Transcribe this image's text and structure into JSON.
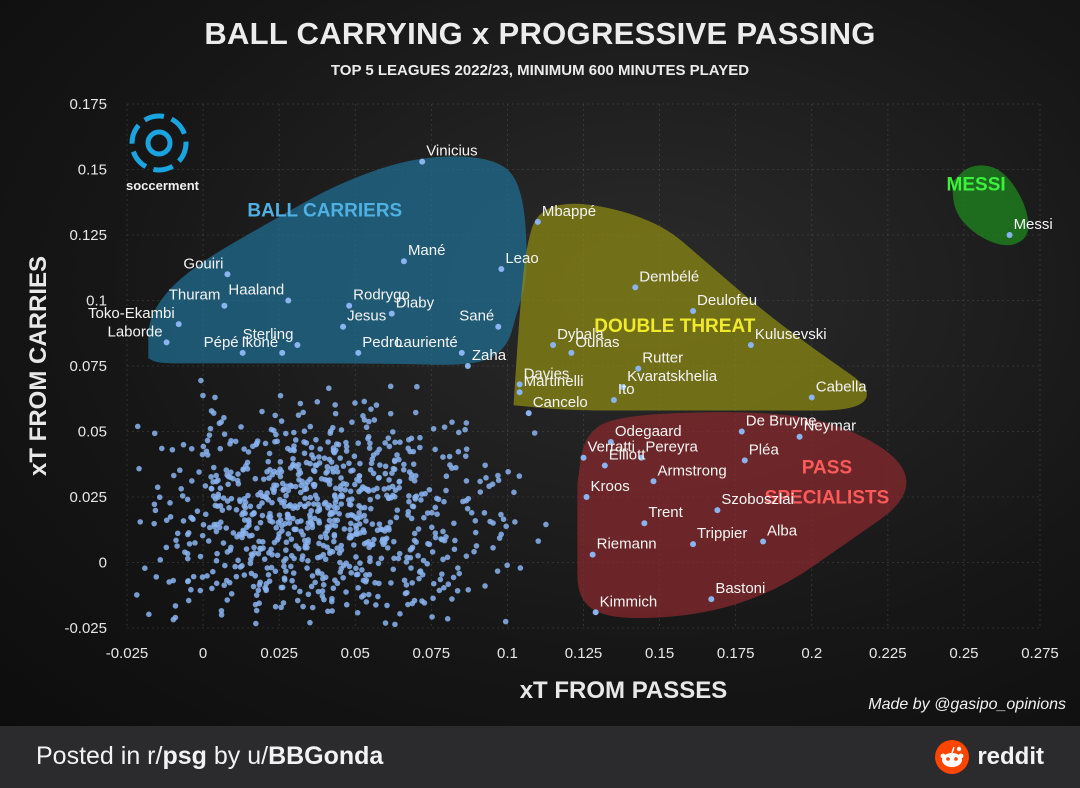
{
  "header": {
    "title": "BALL CARRYING x PROGRESSIVE PASSING",
    "subtitle": "TOP 5 LEAGUES 2022/23, MINIMUM 600 MINUTES PLAYED"
  },
  "logo": {
    "text": "soccerment",
    "icon": "soccerment-logo-icon"
  },
  "credit": "Made by @gasipo_opinions",
  "footer": {
    "prefix": "Posted in r/",
    "subreddit": "psg",
    "by": " by u/",
    "user": "BBGonda",
    "brand": "reddit",
    "brand_icon": "reddit-alien-icon",
    "brand_color": "#ff4500"
  },
  "chart_data": {
    "type": "scatter",
    "xlabel": "xT FROM PASSES",
    "ylabel": "xT FROM CARRIES",
    "xlim": [
      -0.025,
      0.275
    ],
    "ylim": [
      -0.025,
      0.175
    ],
    "xticks": [
      "-0.025",
      "0",
      "0.025",
      "0.05",
      "0.075",
      "0.1",
      "0.125",
      "0.15",
      "0.175",
      "0.2",
      "0.225",
      "0.25",
      "0.275"
    ],
    "yticks": [
      "-0.025",
      "0",
      "0.025",
      "0.05",
      "0.075",
      "0.1",
      "0.125",
      "0.15",
      "0.175"
    ],
    "grid": true,
    "point_color": "#8ab4f0",
    "groups": [
      {
        "label": "BALL CARRIERS",
        "color": "#1f6f93",
        "label_color": "#4fb1e3",
        "label_x": 0.04,
        "label_y": 0.132
      },
      {
        "label": "DOUBLE THREAT",
        "color": "#8f8a14",
        "label_color": "#f0ea2a",
        "label_x": 0.155,
        "label_y": 0.088
      },
      {
        "label": "PASS SPECIALISTS",
        "color": "#8b2a2e",
        "label_color": "#ff5a5a",
        "label_x": 0.205,
        "label_y": 0.034
      },
      {
        "label": "MESSI",
        "color": "#1e8a1e",
        "label_color": "#3ef03e",
        "label_x": 0.254,
        "label_y": 0.142
      }
    ],
    "players": [
      {
        "name": "Vinicius",
        "x": 0.072,
        "y": 0.153
      },
      {
        "name": "Mané",
        "x": 0.066,
        "y": 0.115
      },
      {
        "name": "Leao",
        "x": 0.098,
        "y": 0.112
      },
      {
        "name": "Gouiri",
        "x": 0.008,
        "y": 0.11
      },
      {
        "name": "Haaland",
        "x": 0.028,
        "y": 0.1
      },
      {
        "name": "Thuram",
        "x": 0.007,
        "y": 0.098
      },
      {
        "name": "Rodrygo",
        "x": 0.048,
        "y": 0.098
      },
      {
        "name": "Diaby",
        "x": 0.062,
        "y": 0.095
      },
      {
        "name": "Toko-Ekambi",
        "x": -0.008,
        "y": 0.091
      },
      {
        "name": "Jesus",
        "x": 0.046,
        "y": 0.09
      },
      {
        "name": "Sané",
        "x": 0.097,
        "y": 0.09
      },
      {
        "name": "Sterling",
        "x": 0.031,
        "y": 0.083
      },
      {
        "name": "Pedro",
        "x": 0.051,
        "y": 0.08
      },
      {
        "name": "Laurienté",
        "x": 0.085,
        "y": 0.08
      },
      {
        "name": "Laborde",
        "x": -0.012,
        "y": 0.084
      },
      {
        "name": "Pépé",
        "x": 0.013,
        "y": 0.08
      },
      {
        "name": "Ikoné",
        "x": 0.026,
        "y": 0.08
      },
      {
        "name": "Zaha",
        "x": 0.087,
        "y": 0.075
      },
      {
        "name": "Mbappé",
        "x": 0.11,
        "y": 0.13
      },
      {
        "name": "Dembélé",
        "x": 0.142,
        "y": 0.105
      },
      {
        "name": "Deulofeu",
        "x": 0.161,
        "y": 0.096
      },
      {
        "name": "Dybala",
        "x": 0.115,
        "y": 0.083
      },
      {
        "name": "Kulusevski",
        "x": 0.18,
        "y": 0.083
      },
      {
        "name": "Ounas",
        "x": 0.121,
        "y": 0.08
      },
      {
        "name": "Rutter",
        "x": 0.143,
        "y": 0.074
      },
      {
        "name": "Davies",
        "x": 0.104,
        "y": 0.068
      },
      {
        "name": "Kvaratskhelia",
        "x": 0.138,
        "y": 0.067
      },
      {
        "name": "Martinelli",
        "x": 0.104,
        "y": 0.065
      },
      {
        "name": "Ito",
        "x": 0.135,
        "y": 0.062
      },
      {
        "name": "Cabella",
        "x": 0.2,
        "y": 0.063
      },
      {
        "name": "Cancelo",
        "x": 0.107,
        "y": 0.057
      },
      {
        "name": "De Bruyne",
        "x": 0.177,
        "y": 0.05
      },
      {
        "name": "Odegaard",
        "x": 0.134,
        "y": 0.046
      },
      {
        "name": "Neymar",
        "x": 0.196,
        "y": 0.048
      },
      {
        "name": "Verratti",
        "x": 0.125,
        "y": 0.04
      },
      {
        "name": "Pereyra",
        "x": 0.144,
        "y": 0.04
      },
      {
        "name": "Pléa",
        "x": 0.178,
        "y": 0.039
      },
      {
        "name": "Elliott",
        "x": 0.132,
        "y": 0.037
      },
      {
        "name": "Armstrong",
        "x": 0.148,
        "y": 0.031
      },
      {
        "name": "Kroos",
        "x": 0.126,
        "y": 0.025
      },
      {
        "name": "Szoboszlai",
        "x": 0.169,
        "y": 0.02
      },
      {
        "name": "Trent",
        "x": 0.145,
        "y": 0.015
      },
      {
        "name": "Trippier",
        "x": 0.161,
        "y": 0.007
      },
      {
        "name": "Alba",
        "x": 0.184,
        "y": 0.008
      },
      {
        "name": "Riemann",
        "x": 0.128,
        "y": 0.003
      },
      {
        "name": "Bastoni",
        "x": 0.167,
        "y": -0.014
      },
      {
        "name": "Kimmich",
        "x": 0.129,
        "y": -0.019
      },
      {
        "name": "Messi",
        "x": 0.265,
        "y": 0.125
      }
    ]
  }
}
